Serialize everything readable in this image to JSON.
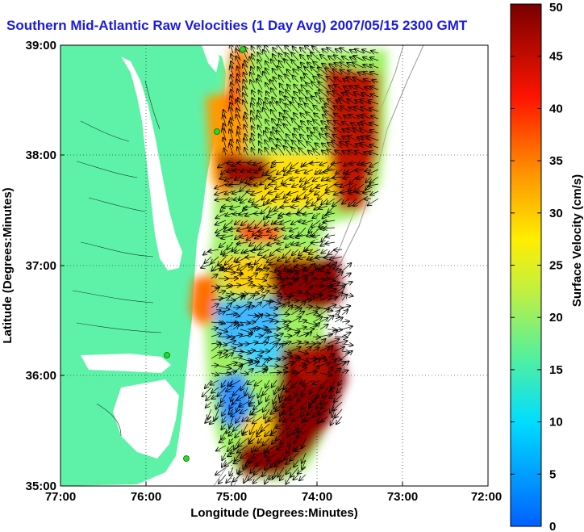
{
  "title": "Southern Mid-Atlantic Raw Velocities (1 Day Avg) 2007/05/15 2300 GMT",
  "axes": {
    "xlabel": "Longitude (Degrees:Minutes)",
    "ylabel": "Latitude (Degrees:Minutes)",
    "xticks": [
      "77:00",
      "76:00",
      "75:00",
      "74:00",
      "73:00",
      "72:00"
    ],
    "yticks": [
      "39:00",
      "38:00",
      "37:00",
      "36:00",
      "35:00"
    ]
  },
  "colorbar": {
    "label": "Surface Velocity (cm/s)",
    "ticks": [
      "0",
      "5",
      "10",
      "15",
      "20",
      "25",
      "30",
      "35",
      "40",
      "45",
      "50"
    ],
    "min": 0,
    "max": 50
  },
  "colors": {
    "land": "#5ef2a8",
    "title": "#1a1adc",
    "station": "#22dd22"
  }
}
